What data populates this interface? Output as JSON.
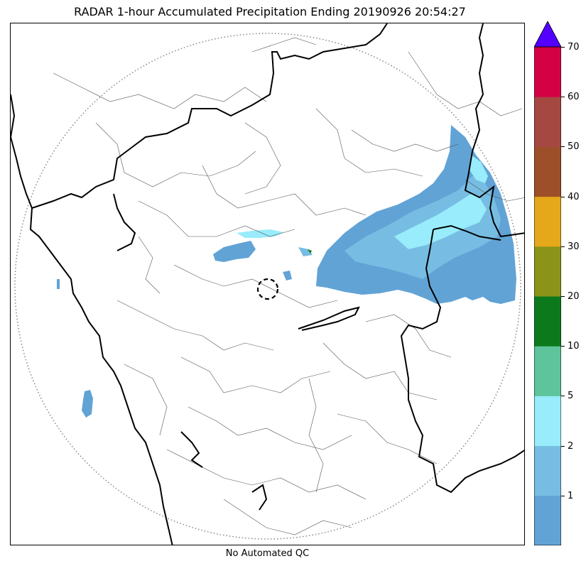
{
  "title": "RADAR 1-hour Accumulated Precipitation Ending 20190926 20:54:27",
  "footer": "No Automated QC",
  "colorbar": {
    "ticks": [
      "1",
      "2",
      "5",
      "10",
      "20",
      "30",
      "40",
      "50",
      "60",
      "70"
    ],
    "extend_color": "#5300ff",
    "colors": [
      "#62a3d6",
      "#77bde3",
      "#98ecfb",
      "#5ec49b",
      "#0c7a1c",
      "#8b9418",
      "#e6a81b",
      "#9c4f29",
      "#a54842",
      "#d40145"
    ]
  },
  "map": {
    "range_ring": "dotted",
    "radar_site_marker": "dashed-circle"
  }
}
